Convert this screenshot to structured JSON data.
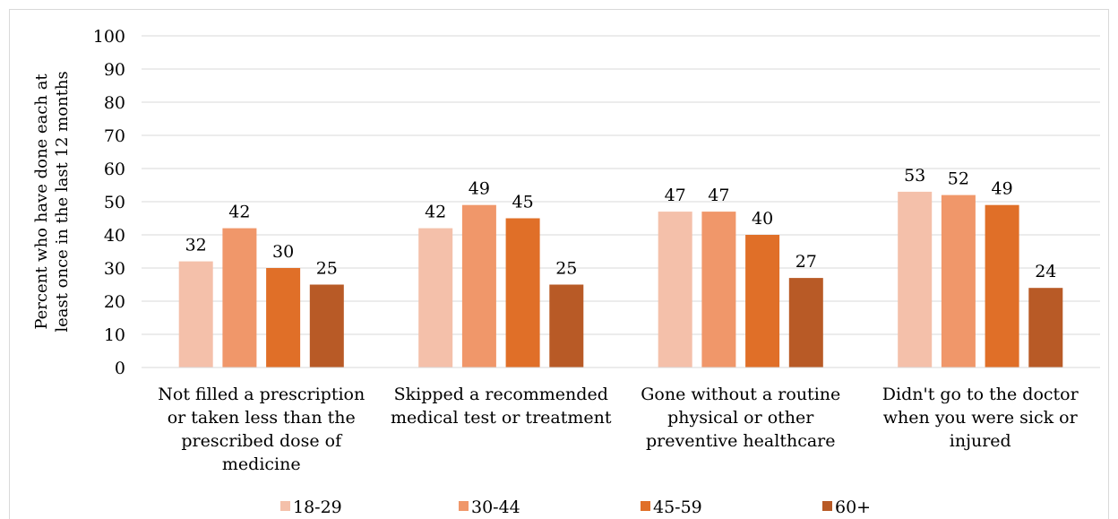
{
  "chart_data": {
    "type": "bar",
    "ylabel": [
      "Percent who have done each at",
      "least once in the last 12 months"
    ],
    "ylim": [
      0,
      100
    ],
    "yticks": [
      0,
      10,
      20,
      30,
      40,
      50,
      60,
      70,
      80,
      90,
      100
    ],
    "grid": true,
    "legend_position": "bottom",
    "categories": [
      [
        "Not filled a prescription",
        "or taken less than the",
        "prescribed dose of",
        "medicine"
      ],
      [
        "Skipped a recommended",
        "medical test or treatment"
      ],
      [
        "Gone without a routine",
        "physical or other",
        "preventive healthcare"
      ],
      [
        "Didn't go to the doctor",
        "when you were sick or",
        "injured"
      ]
    ],
    "series": [
      {
        "name": "18-29",
        "color": "#f4c0aa",
        "values": [
          32,
          42,
          47,
          53
        ]
      },
      {
        "name": "30-44",
        "color": "#f0976a",
        "values": [
          42,
          49,
          47,
          52
        ]
      },
      {
        "name": "45-59",
        "color": "#e06f28",
        "values": [
          30,
          45,
          40,
          49
        ]
      },
      {
        "name": "60+",
        "color": "#b85a26",
        "values": [
          25,
          25,
          27,
          24
        ]
      }
    ]
  }
}
